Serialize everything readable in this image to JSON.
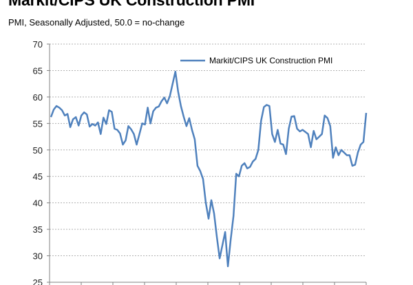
{
  "chart_data": {
    "type": "line",
    "title": "Markit/CIPS UK Construction PMI",
    "subtitle": "PMI, Seasonally Adjusted, 50.0 = no-change",
    "ylim": [
      25,
      70
    ],
    "yticks": [
      25,
      30,
      35,
      40,
      45,
      50,
      55,
      60,
      65,
      70
    ],
    "grid": true,
    "legend_position": "top-right",
    "colors": {
      "line": "#4f81bd",
      "grid": "#b0b0b0",
      "axis": "#808080"
    },
    "series": [
      {
        "name": "Markit/CIPS UK Construction PMI",
        "values": [
          56.2,
          57.6,
          58.3,
          58.0,
          57.5,
          56.5,
          56.8,
          54.3,
          55.8,
          56.2,
          54.6,
          56.5,
          57.1,
          56.7,
          54.4,
          54.9,
          54.6,
          55.2,
          53.0,
          56.1,
          54.9,
          57.5,
          57.2,
          54.0,
          53.8,
          53.1,
          51.0,
          51.8,
          54.5,
          53.9,
          53.0,
          51.0,
          53.0,
          55.0,
          54.8,
          58.0,
          55.0,
          57.3,
          58.0,
          58.2,
          59.2,
          59.9,
          58.8,
          60.2,
          62.5,
          64.8,
          61.0,
          58.3,
          56.3,
          54.5,
          56.0,
          53.8,
          52.0,
          47.0,
          46.0,
          44.5,
          40.0,
          37.0,
          40.5,
          38.0,
          33.5,
          29.5,
          32.0,
          34.5,
          28.0,
          33.0,
          37.5,
          45.5,
          45.0,
          47.0,
          47.5,
          46.5,
          46.8,
          47.8,
          48.3,
          50.0,
          55.5,
          58.1,
          58.5,
          58.3,
          53.0,
          51.5,
          53.8,
          51.2,
          51.0,
          49.2,
          54.0,
          56.3,
          56.4,
          54.0,
          53.5,
          53.8,
          53.4,
          53.0,
          50.5,
          53.6,
          52.0,
          52.5,
          53.0,
          56.5,
          56.0,
          54.5,
          48.5,
          50.5,
          49.0,
          50.0,
          49.5,
          49.0,
          49.0,
          47.0,
          47.2,
          49.5,
          51.0,
          51.5,
          57.0
        ]
      }
    ]
  }
}
